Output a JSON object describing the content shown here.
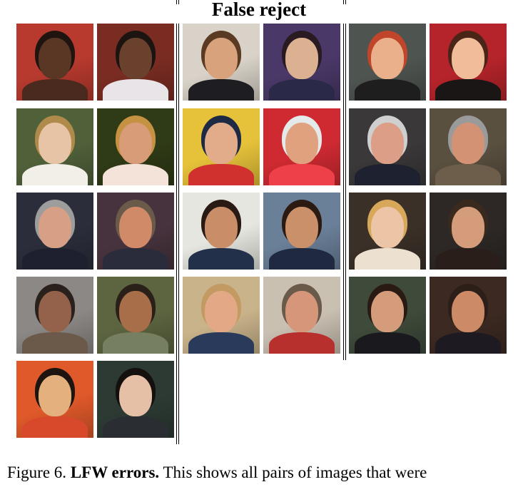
{
  "figure": {
    "title": "False reject",
    "caption": {
      "prefix": "Figure 6.",
      "bold": "LFW errors.",
      "text": "This shows all pairs of images that were"
    },
    "groups": [
      {
        "pairs": [
          [
            {
              "bg": "#b83a2e",
              "skin": "#5a3624",
              "hair": "#1f1410",
              "shirt": "#4a2a1e"
            },
            {
              "bg": "#7a2c22",
              "skin": "#6a412d",
              "hair": "#1c1410",
              "shirt": "#e9e4e8"
            }
          ],
          [
            {
              "bg": "#50613a",
              "skin": "#e7c4a6",
              "hair": "#b08a4a",
              "shirt": "#f2efe9"
            },
            {
              "bg": "#2f3a16",
              "skin": "#d89d78",
              "hair": "#c59242",
              "shirt": "#f3e3d8"
            }
          ],
          [
            {
              "bg": "#2b2d3a",
              "skin": "#d79f86",
              "hair": "#9d9d9d",
              "shirt": "#1e2030"
            },
            {
              "bg": "#47333d",
              "skin": "#d18a68",
              "hair": "#6a5a4a",
              "shirt": "#2a2c3c"
            }
          ],
          [
            {
              "bg": "#8c8886",
              "skin": "#94624a",
              "hair": "#2a201c",
              "shirt": "#6b5a4a"
            },
            {
              "bg": "#5c6440",
              "skin": "#a86e4a",
              "hair": "#2a201a",
              "shirt": "#768061"
            }
          ],
          [
            {
              "bg": "#e0592a",
              "skin": "#e3b07e",
              "hair": "#1e1410",
              "shirt": "#d8482a"
            },
            {
              "bg": "#2d3a34",
              "skin": "#e5c0a6",
              "hair": "#14100e",
              "shirt": "#2a2e32"
            }
          ]
        ]
      },
      {
        "pairs": [
          [
            {
              "bg": "#d8d2c8",
              "skin": "#d8a27c",
              "hair": "#5a3a22",
              "shirt": "#1e1e22"
            },
            {
              "bg": "#4a3868",
              "skin": "#dcb192",
              "hair": "#2a1a22",
              "shirt": "#2a2a48"
            }
          ],
          [
            {
              "bg": "#e6c23a",
              "skin": "#e2ac8a",
              "hair": "#1e2a44",
              "shirt": "#d0302e"
            },
            {
              "bg": "#cf2a32",
              "skin": "#e0a27e",
              "hair": "#e4eaea",
              "shirt": "#ee4048"
            }
          ],
          [
            {
              "bg": "#e6e6e0",
              "skin": "#c98d68",
              "hair": "#2a1a14",
              "shirt": "#22304a"
            },
            {
              "bg": "#6a7f98",
              "skin": "#c9906a",
              "hair": "#2a1a12",
              "shirt": "#1f2a40"
            }
          ],
          [
            {
              "bg": "#c9b38a",
              "skin": "#e3a886",
              "hair": "#c39a62",
              "shirt": "#2a3a5a"
            },
            {
              "bg": "#cac0b2",
              "skin": "#d6967a",
              "hair": "#6a5a4a",
              "shirt": "#b7302e"
            }
          ]
        ]
      },
      {
        "pairs": [
          [
            {
              "bg": "#4e5450",
              "skin": "#eab08c",
              "hair": "#c0452a",
              "shirt": "#1e1e1e"
            },
            {
              "bg": "#b5242a",
              "skin": "#f0bc9a",
              "hair": "#4a2416",
              "shirt": "#1a1616"
            }
          ],
          [
            {
              "bg": "#3a3838",
              "skin": "#dc9e86",
              "hair": "#cfcfcf",
              "shirt": "#1e2230"
            },
            {
              "bg": "#5a5040",
              "skin": "#d49274",
              "hair": "#9a9a9a",
              "shirt": "#6c5e4a"
            }
          ],
          [
            {
              "bg": "#3a3028",
              "skin": "#ecc4a6",
              "hair": "#d8a85a",
              "shirt": "#ece0d0"
            },
            {
              "bg": "#2d2825",
              "skin": "#d49c7a",
              "hair": "#3a2a1e",
              "shirt": "#2a1e1a"
            }
          ],
          [
            {
              "bg": "#3e4a3a",
              "skin": "#d59c7c",
              "hair": "#2a1a14",
              "shirt": "#1a1a1e"
            },
            {
              "bg": "#3c2a22",
              "skin": "#cc8a66",
              "hair": "#2c1e18",
              "shirt": "#1e1a22"
            }
          ]
        ]
      }
    ]
  }
}
